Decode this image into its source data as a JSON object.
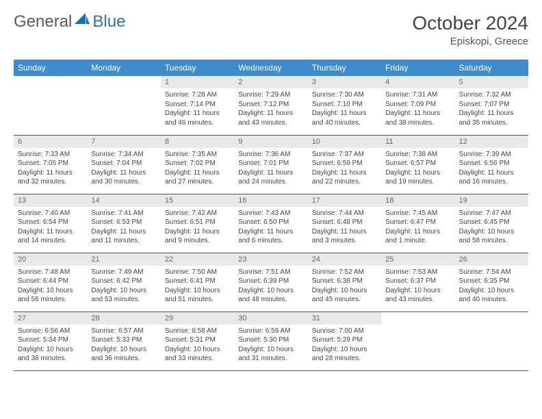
{
  "brand": {
    "part1": "General",
    "part2": "Blue"
  },
  "header": {
    "title": "October 2024",
    "location": "Episkopi, Greece"
  },
  "columns": [
    "Sunday",
    "Monday",
    "Tuesday",
    "Wednesday",
    "Thursday",
    "Friday",
    "Saturday"
  ],
  "colors": {
    "header_bg": "#3f8ccc",
    "header_text": "#ffffff",
    "daynum_bg": "#e9e9e9",
    "rule": "#1f5f94",
    "logo_accent": "#1f6bb3"
  },
  "weeks": [
    [
      {
        "n": "",
        "empty": true,
        "sunrise": "",
        "sunset": "",
        "daylight1": "",
        "daylight2": ""
      },
      {
        "n": "",
        "empty": true,
        "sunrise": "",
        "sunset": "",
        "daylight1": "",
        "daylight2": ""
      },
      {
        "n": "1",
        "sunrise": "Sunrise: 7:28 AM",
        "sunset": "Sunset: 7:14 PM",
        "daylight1": "Daylight: 11 hours",
        "daylight2": "and 46 minutes."
      },
      {
        "n": "2",
        "sunrise": "Sunrise: 7:29 AM",
        "sunset": "Sunset: 7:12 PM",
        "daylight1": "Daylight: 11 hours",
        "daylight2": "and 43 minutes."
      },
      {
        "n": "3",
        "sunrise": "Sunrise: 7:30 AM",
        "sunset": "Sunset: 7:10 PM",
        "daylight1": "Daylight: 11 hours",
        "daylight2": "and 40 minutes."
      },
      {
        "n": "4",
        "sunrise": "Sunrise: 7:31 AM",
        "sunset": "Sunset: 7:09 PM",
        "daylight1": "Daylight: 11 hours",
        "daylight2": "and 38 minutes."
      },
      {
        "n": "5",
        "sunrise": "Sunrise: 7:32 AM",
        "sunset": "Sunset: 7:07 PM",
        "daylight1": "Daylight: 11 hours",
        "daylight2": "and 35 minutes."
      }
    ],
    [
      {
        "n": "6",
        "sunrise": "Sunrise: 7:33 AM",
        "sunset": "Sunset: 7:05 PM",
        "daylight1": "Daylight: 11 hours",
        "daylight2": "and 32 minutes."
      },
      {
        "n": "7",
        "sunrise": "Sunrise: 7:34 AM",
        "sunset": "Sunset: 7:04 PM",
        "daylight1": "Daylight: 11 hours",
        "daylight2": "and 30 minutes."
      },
      {
        "n": "8",
        "sunrise": "Sunrise: 7:35 AM",
        "sunset": "Sunset: 7:02 PM",
        "daylight1": "Daylight: 11 hours",
        "daylight2": "and 27 minutes."
      },
      {
        "n": "9",
        "sunrise": "Sunrise: 7:36 AM",
        "sunset": "Sunset: 7:01 PM",
        "daylight1": "Daylight: 11 hours",
        "daylight2": "and 24 minutes."
      },
      {
        "n": "10",
        "sunrise": "Sunrise: 7:37 AM",
        "sunset": "Sunset: 6:59 PM",
        "daylight1": "Daylight: 11 hours",
        "daylight2": "and 22 minutes."
      },
      {
        "n": "11",
        "sunrise": "Sunrise: 7:38 AM",
        "sunset": "Sunset: 6:57 PM",
        "daylight1": "Daylight: 11 hours",
        "daylight2": "and 19 minutes."
      },
      {
        "n": "12",
        "sunrise": "Sunrise: 7:39 AM",
        "sunset": "Sunset: 6:56 PM",
        "daylight1": "Daylight: 11 hours",
        "daylight2": "and 16 minutes."
      }
    ],
    [
      {
        "n": "13",
        "sunrise": "Sunrise: 7:40 AM",
        "sunset": "Sunset: 6:54 PM",
        "daylight1": "Daylight: 11 hours",
        "daylight2": "and 14 minutes."
      },
      {
        "n": "14",
        "sunrise": "Sunrise: 7:41 AM",
        "sunset": "Sunset: 6:53 PM",
        "daylight1": "Daylight: 11 hours",
        "daylight2": "and 11 minutes."
      },
      {
        "n": "15",
        "sunrise": "Sunrise: 7:42 AM",
        "sunset": "Sunset: 6:51 PM",
        "daylight1": "Daylight: 11 hours",
        "daylight2": "and 9 minutes."
      },
      {
        "n": "16",
        "sunrise": "Sunrise: 7:43 AM",
        "sunset": "Sunset: 6:50 PM",
        "daylight1": "Daylight: 11 hours",
        "daylight2": "and 6 minutes."
      },
      {
        "n": "17",
        "sunrise": "Sunrise: 7:44 AM",
        "sunset": "Sunset: 6:48 PM",
        "daylight1": "Daylight: 11 hours",
        "daylight2": "and 3 minutes."
      },
      {
        "n": "18",
        "sunrise": "Sunrise: 7:45 AM",
        "sunset": "Sunset: 6:47 PM",
        "daylight1": "Daylight: 11 hours",
        "daylight2": "and 1 minute."
      },
      {
        "n": "19",
        "sunrise": "Sunrise: 7:47 AM",
        "sunset": "Sunset: 6:45 PM",
        "daylight1": "Daylight: 10 hours",
        "daylight2": "and 58 minutes."
      }
    ],
    [
      {
        "n": "20",
        "sunrise": "Sunrise: 7:48 AM",
        "sunset": "Sunset: 6:44 PM",
        "daylight1": "Daylight: 10 hours",
        "daylight2": "and 56 minutes."
      },
      {
        "n": "21",
        "sunrise": "Sunrise: 7:49 AM",
        "sunset": "Sunset: 6:42 PM",
        "daylight1": "Daylight: 10 hours",
        "daylight2": "and 53 minutes."
      },
      {
        "n": "22",
        "sunrise": "Sunrise: 7:50 AM",
        "sunset": "Sunset: 6:41 PM",
        "daylight1": "Daylight: 10 hours",
        "daylight2": "and 51 minutes."
      },
      {
        "n": "23",
        "sunrise": "Sunrise: 7:51 AM",
        "sunset": "Sunset: 6:39 PM",
        "daylight1": "Daylight: 10 hours",
        "daylight2": "and 48 minutes."
      },
      {
        "n": "24",
        "sunrise": "Sunrise: 7:52 AM",
        "sunset": "Sunset: 6:38 PM",
        "daylight1": "Daylight: 10 hours",
        "daylight2": "and 45 minutes."
      },
      {
        "n": "25",
        "sunrise": "Sunrise: 7:53 AM",
        "sunset": "Sunset: 6:37 PM",
        "daylight1": "Daylight: 10 hours",
        "daylight2": "and 43 minutes."
      },
      {
        "n": "26",
        "sunrise": "Sunrise: 7:54 AM",
        "sunset": "Sunset: 6:35 PM",
        "daylight1": "Daylight: 10 hours",
        "daylight2": "and 40 minutes."
      }
    ],
    [
      {
        "n": "27",
        "sunrise": "Sunrise: 6:56 AM",
        "sunset": "Sunset: 5:34 PM",
        "daylight1": "Daylight: 10 hours",
        "daylight2": "and 38 minutes."
      },
      {
        "n": "28",
        "sunrise": "Sunrise: 6:57 AM",
        "sunset": "Sunset: 5:33 PM",
        "daylight1": "Daylight: 10 hours",
        "daylight2": "and 36 minutes."
      },
      {
        "n": "29",
        "sunrise": "Sunrise: 6:58 AM",
        "sunset": "Sunset: 5:31 PM",
        "daylight1": "Daylight: 10 hours",
        "daylight2": "and 33 minutes."
      },
      {
        "n": "30",
        "sunrise": "Sunrise: 6:59 AM",
        "sunset": "Sunset: 5:30 PM",
        "daylight1": "Daylight: 10 hours",
        "daylight2": "and 31 minutes."
      },
      {
        "n": "31",
        "sunrise": "Sunrise: 7:00 AM",
        "sunset": "Sunset: 5:29 PM",
        "daylight1": "Daylight: 10 hours",
        "daylight2": "and 28 minutes."
      },
      {
        "n": "",
        "empty": true,
        "sunrise": "",
        "sunset": "",
        "daylight1": "",
        "daylight2": ""
      },
      {
        "n": "",
        "empty": true,
        "sunrise": "",
        "sunset": "",
        "daylight1": "",
        "daylight2": ""
      }
    ]
  ]
}
